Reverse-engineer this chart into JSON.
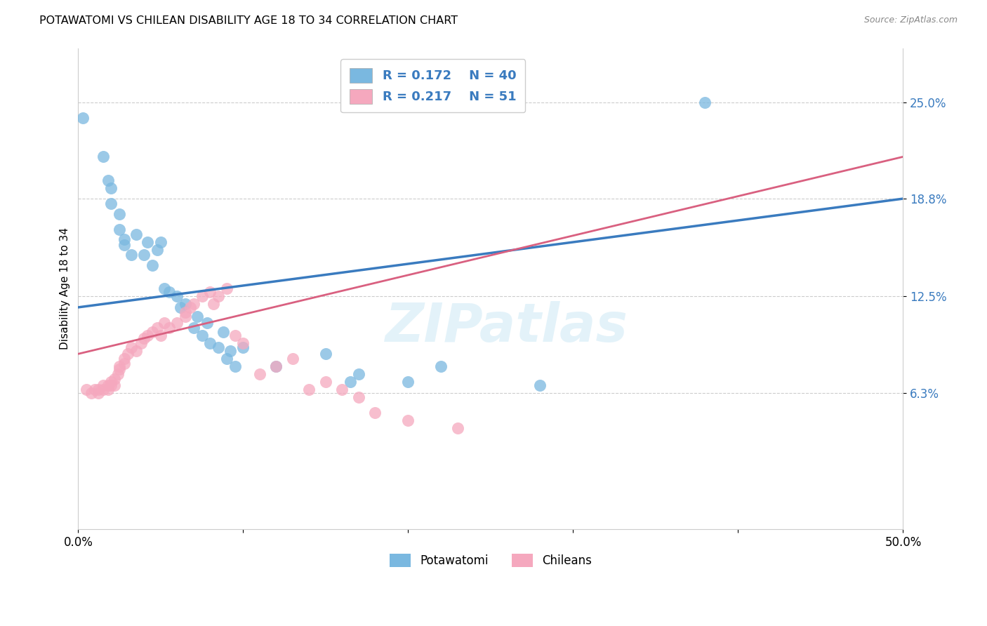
{
  "title": "POTAWATOMI VS CHILEAN DISABILITY AGE 18 TO 34 CORRELATION CHART",
  "source_text": "Source: ZipAtlas.com",
  "ylabel": "Disability Age 18 to 34",
  "xlim": [
    0.0,
    0.5
  ],
  "ylim": [
    -0.025,
    0.285
  ],
  "ytick_labels": [
    "6.3%",
    "12.5%",
    "18.8%",
    "25.0%"
  ],
  "ytick_vals": [
    0.063,
    0.125,
    0.188,
    0.25
  ],
  "legend_r1": "R = 0.172",
  "legend_n1": "N = 40",
  "legend_r2": "R = 0.217",
  "legend_n2": "N = 51",
  "color_blue": "#7ab8e0",
  "color_pink": "#f5a8be",
  "color_blue_line": "#3a7bbf",
  "color_pink_line": "#d96080",
  "color_legend_text": "#3a7bbf",
  "background_color": "#ffffff",
  "watermark": "ZIPatlas",
  "blue_line_x0": 0.0,
  "blue_line_y0": 0.118,
  "blue_line_x1": 0.5,
  "blue_line_y1": 0.188,
  "pink_line_x0": 0.0,
  "pink_line_y0": 0.088,
  "pink_line_x1": 0.5,
  "pink_line_y1": 0.215,
  "potawatomi_x": [
    0.003,
    0.015,
    0.018,
    0.02,
    0.02,
    0.025,
    0.025,
    0.028,
    0.028,
    0.032,
    0.035,
    0.04,
    0.042,
    0.045,
    0.048,
    0.05,
    0.052,
    0.055,
    0.06,
    0.062,
    0.065,
    0.07,
    0.072,
    0.075,
    0.078,
    0.08,
    0.085,
    0.088,
    0.09,
    0.092,
    0.095,
    0.1,
    0.12,
    0.15,
    0.165,
    0.17,
    0.2,
    0.22,
    0.28,
    0.38
  ],
  "potawatomi_y": [
    0.24,
    0.215,
    0.2,
    0.195,
    0.185,
    0.178,
    0.168,
    0.162,
    0.158,
    0.152,
    0.165,
    0.152,
    0.16,
    0.145,
    0.155,
    0.16,
    0.13,
    0.128,
    0.125,
    0.118,
    0.12,
    0.105,
    0.112,
    0.1,
    0.108,
    0.095,
    0.092,
    0.102,
    0.085,
    0.09,
    0.08,
    0.092,
    0.08,
    0.088,
    0.07,
    0.075,
    0.07,
    0.08,
    0.068,
    0.25
  ],
  "chilean_x": [
    0.005,
    0.008,
    0.01,
    0.012,
    0.012,
    0.015,
    0.015,
    0.018,
    0.018,
    0.02,
    0.02,
    0.022,
    0.022,
    0.024,
    0.025,
    0.025,
    0.028,
    0.028,
    0.03,
    0.032,
    0.035,
    0.038,
    0.04,
    0.042,
    0.045,
    0.048,
    0.05,
    0.052,
    0.055,
    0.06,
    0.065,
    0.065,
    0.068,
    0.07,
    0.075,
    0.08,
    0.082,
    0.085,
    0.09,
    0.095,
    0.1,
    0.11,
    0.12,
    0.13,
    0.14,
    0.15,
    0.16,
    0.17,
    0.18,
    0.2,
    0.23
  ],
  "chilean_y": [
    0.065,
    0.063,
    0.065,
    0.063,
    0.065,
    0.065,
    0.068,
    0.068,
    0.065,
    0.07,
    0.068,
    0.072,
    0.068,
    0.075,
    0.078,
    0.08,
    0.082,
    0.085,
    0.088,
    0.092,
    0.09,
    0.095,
    0.098,
    0.1,
    0.102,
    0.105,
    0.1,
    0.108,
    0.105,
    0.108,
    0.112,
    0.115,
    0.118,
    0.12,
    0.125,
    0.128,
    0.12,
    0.125,
    0.13,
    0.1,
    0.095,
    0.075,
    0.08,
    0.085,
    0.065,
    0.07,
    0.065,
    0.06,
    0.05,
    0.045,
    0.04
  ]
}
